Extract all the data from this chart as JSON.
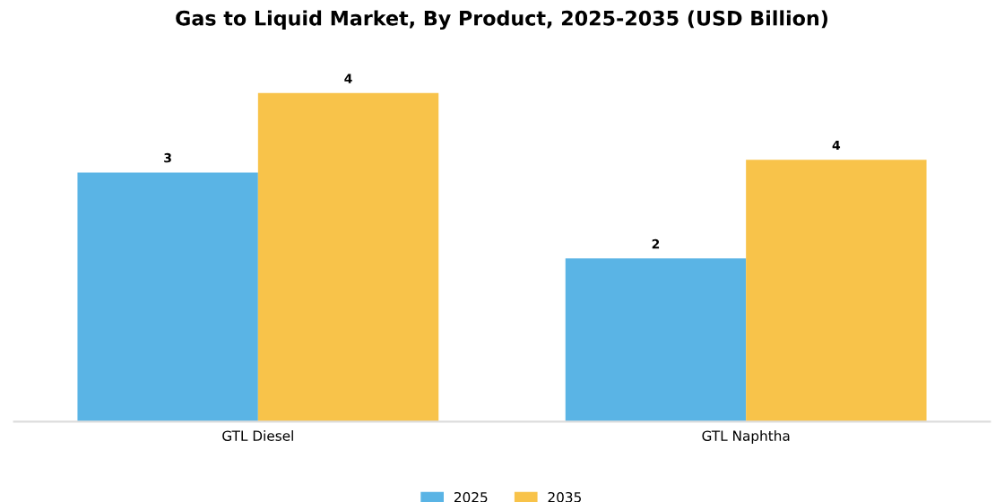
{
  "chart_data": {
    "type": "bar",
    "title": "Gas to Liquid Market, By Product, 2025-2035 (USD Billion)",
    "categories": [
      "GTL Diesel",
      "GTL Naphtha"
    ],
    "series": [
      {
        "name": "2025",
        "color": "#5ab4e5",
        "values": [
          3.36,
          2.2
        ],
        "value_labels": [
          "3",
          "2"
        ]
      },
      {
        "name": "2035",
        "color": "#f8c34a",
        "values": [
          4.43,
          3.53
        ],
        "value_labels": [
          "4",
          "4"
        ]
      }
    ],
    "legend": "bottom",
    "grid": false
  }
}
